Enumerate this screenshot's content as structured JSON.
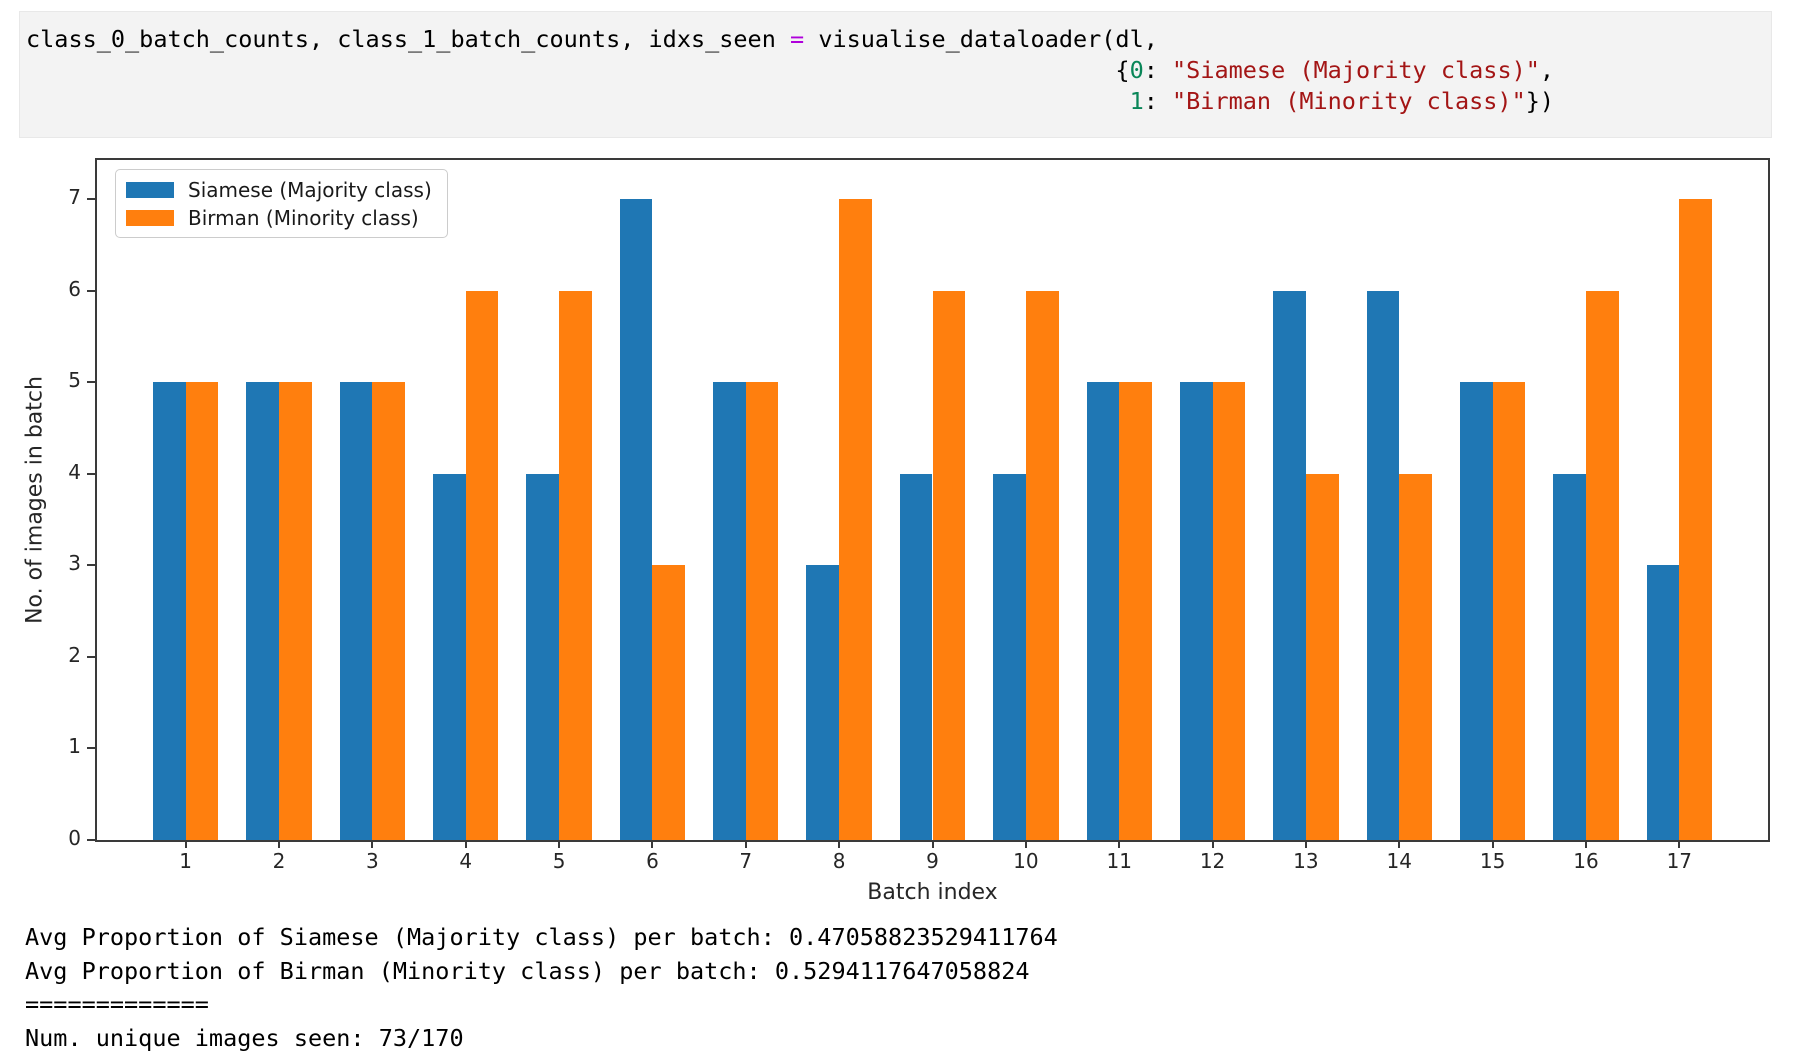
{
  "code_cell": {
    "lines": [
      {
        "indent": 0,
        "tokens": [
          {
            "text": "class_0_batch_counts, class_1_batch_counts, idxs_seen ",
            "type": "plain"
          },
          {
            "text": "=",
            "type": "operator"
          },
          {
            "text": " visualise_dataloader(dl,",
            "type": "plain"
          }
        ]
      },
      {
        "indent": 77,
        "tokens": [
          {
            "text": "{",
            "type": "plain"
          },
          {
            "text": "0",
            "type": "number"
          },
          {
            "text": ": ",
            "type": "plain"
          },
          {
            "text": "\"Siamese (Majority class)\"",
            "type": "string"
          },
          {
            "text": ",",
            "type": "plain"
          }
        ]
      },
      {
        "indent": 78,
        "tokens": [
          {
            "text": "1",
            "type": "number"
          },
          {
            "text": ": ",
            "type": "plain"
          },
          {
            "text": "\"Birman (Minority class)\"",
            "type": "string"
          },
          {
            "text": "})",
            "type": "plain"
          }
        ]
      }
    ]
  },
  "chart_data": {
    "type": "bar",
    "title": "",
    "xlabel": "Batch index",
    "ylabel": "No. of images in batch",
    "categories": [
      1,
      2,
      3,
      4,
      5,
      6,
      7,
      8,
      9,
      10,
      11,
      12,
      13,
      14,
      15,
      16,
      17
    ],
    "series": [
      {
        "name": "Siamese (Majority class)",
        "color": "#1f77b4",
        "values": [
          5,
          5,
          5,
          4,
          4,
          7,
          5,
          3,
          4,
          4,
          5,
          5,
          6,
          6,
          5,
          4,
          3
        ]
      },
      {
        "name": "Birman (Minority class)",
        "color": "#ff7f0e",
        "values": [
          5,
          5,
          5,
          6,
          6,
          3,
          5,
          7,
          6,
          6,
          5,
          5,
          4,
          4,
          5,
          6,
          7
        ]
      }
    ],
    "ylim": [
      0,
      7.43
    ],
    "yticks": [
      0,
      1,
      2,
      3,
      4,
      5,
      6,
      7
    ],
    "bar_width": 0.35,
    "legend_position": "upper left",
    "grid": false
  },
  "output_text": {
    "lines": [
      "Avg Proportion of Siamese (Majority class) per batch: 0.47058823529411764",
      "Avg Proportion of Birman (Minority class) per batch: 0.5294117647058824",
      "=============",
      "Num. unique images seen: 73/170"
    ]
  },
  "colors": {
    "cell_background": "#f3f3f3",
    "code_plain": "#000000",
    "code_operator": "#af00db",
    "code_number": "#098658",
    "code_string": "#a31515",
    "axis": "#3a3a3a",
    "chart_text": "#262626"
  }
}
